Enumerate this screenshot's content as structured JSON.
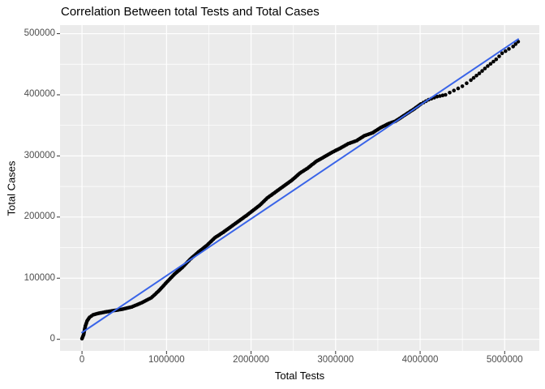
{
  "title": "Correlation Between total Tests and Total Cases",
  "colors": {
    "page_bg": "#FFFFFF",
    "panel_bg": "#EBEBEB",
    "grid": "#FFFFFF",
    "point": "#000000",
    "smooth_line": "#3964E8",
    "tick_mark": "#333333",
    "tick_text": "#4D4D4D",
    "title_text": "#000000"
  },
  "chart_data": {
    "type": "scatter",
    "title": "Correlation Between total Tests and Total Cases",
    "xlabel": "Total Tests",
    "ylabel": "Total Cases",
    "xlim": [
      -260000,
      5410000
    ],
    "ylim": [
      -19000,
      514000
    ],
    "x_ticks": [
      0,
      1000000,
      2000000,
      3000000,
      4000000,
      5000000
    ],
    "x_tick_labels": [
      "0",
      "1000000",
      "2000000",
      "3000000",
      "4000000",
      "5000000"
    ],
    "x_minor_ticks": [
      500000,
      1500000,
      2500000,
      3500000,
      4500000
    ],
    "y_ticks": [
      0,
      100000,
      200000,
      300000,
      400000,
      500000
    ],
    "y_tick_labels": [
      "0",
      "100000",
      "200000",
      "300000",
      "400000",
      "500000"
    ],
    "y_minor_ticks": [
      50000,
      150000,
      250000,
      350000,
      450000
    ],
    "grid": true,
    "legend": false,
    "series": [
      {
        "name": "observations",
        "type": "points",
        "color": "#000000",
        "points": [
          [
            0,
            1000
          ],
          [
            20000,
            8000
          ],
          [
            40000,
            22000
          ],
          [
            60000,
            30000
          ],
          [
            90000,
            36000
          ],
          [
            130000,
            40000
          ],
          [
            180000,
            42000
          ],
          [
            250000,
            44000
          ],
          [
            330000,
            46000
          ],
          [
            470000,
            49000
          ],
          [
            590000,
            53000
          ],
          [
            710000,
            60000
          ],
          [
            820000,
            68000
          ],
          [
            900000,
            78000
          ],
          [
            1000000,
            93000
          ],
          [
            1090000,
            106000
          ],
          [
            1190000,
            118000
          ],
          [
            1280000,
            131000
          ],
          [
            1380000,
            143000
          ],
          [
            1480000,
            154000
          ],
          [
            1570000,
            166000
          ],
          [
            1670000,
            175000
          ],
          [
            1760000,
            184000
          ],
          [
            1860000,
            194000
          ],
          [
            1950000,
            203000
          ],
          [
            2100000,
            219000
          ],
          [
            2190000,
            231000
          ],
          [
            2290000,
            241000
          ],
          [
            2390000,
            251000
          ],
          [
            2480000,
            260000
          ],
          [
            2580000,
            272000
          ],
          [
            2670000,
            280000
          ],
          [
            2770000,
            291000
          ],
          [
            2860000,
            298000
          ],
          [
            2960000,
            306000
          ],
          [
            3060000,
            313000
          ],
          [
            3150000,
            320000
          ],
          [
            3250000,
            325000
          ],
          [
            3340000,
            333000
          ],
          [
            3440000,
            338000
          ],
          [
            3530000,
            346000
          ],
          [
            3630000,
            353000
          ],
          [
            3710000,
            357000
          ],
          [
            3820000,
            367000
          ],
          [
            3920000,
            376000
          ],
          [
            4010000,
            385000
          ],
          [
            4100000,
            392000
          ],
          [
            4200000,
            397000
          ],
          [
            4300000,
            400000
          ],
          [
            4400000,
            407000
          ],
          [
            4500000,
            414000
          ],
          [
            4600000,
            424000
          ],
          [
            4700000,
            435000
          ],
          [
            4800000,
            447000
          ],
          [
            4900000,
            458000
          ],
          [
            4970000,
            468000
          ],
          [
            5050000,
            475000
          ],
          [
            5100000,
            479000
          ],
          [
            5160000,
            487000
          ]
        ]
      },
      {
        "name": "linear-fit",
        "type": "line",
        "color": "#3964E8",
        "points": [
          [
            0,
            11000
          ],
          [
            5160000,
            491000
          ]
        ]
      }
    ]
  }
}
